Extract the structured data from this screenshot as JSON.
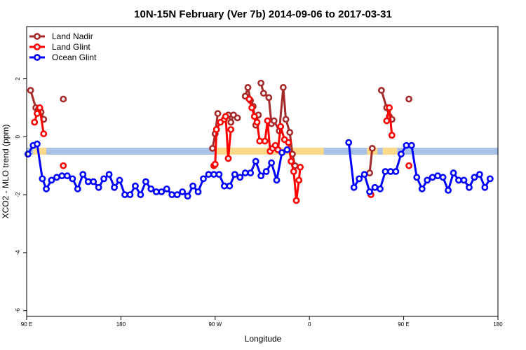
{
  "chart_data": {
    "type": "line",
    "title": "10N-15N February (Ver 7b)   2014-09-06 to 2017-03-31",
    "xlabel": "Longitude",
    "ylabel": "XCO2 - MLO trend (ppm)",
    "xlim": [
      -180,
      180
    ],
    "ylim": [
      -6.2,
      3.8
    ],
    "x_ticks": [
      {
        "value": -180,
        "label": "90 E"
      },
      {
        "value": -108,
        "label": "180"
      },
      {
        "value": -36,
        "label": "90 W"
      },
      {
        "value": 36,
        "label": "0"
      },
      {
        "value": 108,
        "label": "90 E"
      },
      {
        "value": 180,
        "label": "180"
      }
    ],
    "y_ticks": [
      {
        "value": 2,
        "label": "2"
      },
      {
        "value": 0,
        "label": "0"
      },
      {
        "value": -2,
        "label": "-2"
      },
      {
        "value": -4,
        "label": "-4"
      },
      {
        "value": -6,
        "label": "-6"
      }
    ],
    "legend": {
      "position": "top-left"
    },
    "band": {
      "y_from": -0.62,
      "y_to": -0.38,
      "color": "#a9c1e4",
      "land_color": "#fbd98a",
      "land_segments": [
        [
          -175,
          -165
        ],
        [
          -35,
          10
        ],
        [
          -5,
          47
        ],
        [
          80,
          88
        ],
        [
          92,
          103
        ]
      ]
    },
    "series": [
      {
        "name": "Land Nadir",
        "color": "#a52a2a",
        "segments": [
          [
            [
              -177,
              1.6
            ],
            [
              -173,
              1.0
            ],
            [
              -171,
              0.95
            ],
            [
              -169,
              0.85
            ],
            [
              -167,
              0.6
            ]
          ],
          [
            [
              -152,
              1.3
            ]
          ],
          [
            [
              -38,
              -0.4
            ],
            [
              -36,
              0.1
            ],
            [
              -34,
              0.8
            ]
          ],
          [
            [
              -26,
              0.75
            ],
            [
              -24,
              0.5
            ],
            [
              -22,
              0.75
            ],
            [
              -19,
              0.65
            ]
          ],
          [
            [
              -13,
              1.4
            ],
            [
              -11,
              1.7
            ],
            [
              -9,
              1.25
            ],
            [
              -7,
              1.05
            ],
            [
              -5,
              0.4
            ],
            [
              -3,
              0.75
            ]
          ],
          [
            [
              -1,
              1.85
            ],
            [
              1,
              1.5
            ],
            [
              5,
              1.35
            ],
            [
              7,
              0.45
            ],
            [
              9,
              0.55
            ],
            [
              13,
              0.2
            ],
            [
              16,
              1.7
            ],
            [
              18,
              0.6
            ],
            [
              21,
              0.15
            ],
            [
              23,
              -0.6
            ],
            [
              25,
              -1.0
            ]
          ],
          [
            [
              82,
              -1.25
            ],
            [
              84,
              -0.4
            ]
          ],
          [
            [
              91,
              1.6
            ],
            [
              95,
              1.0
            ],
            [
              97,
              0.7
            ],
            [
              99,
              0.6
            ]
          ],
          [
            [
              112,
              1.3
            ]
          ]
        ]
      },
      {
        "name": "Land Glint",
        "color": "#ff0000",
        "segments": [
          [
            [
              -174,
              0.5
            ],
            [
              -172,
              0.8
            ],
            [
              -170,
              1.0
            ],
            [
              -167,
              0.1
            ]
          ],
          [
            [
              -152,
              -1.0
            ]
          ],
          [
            [
              -37,
              -1.0
            ],
            [
              -36,
              -0.95
            ],
            [
              -35,
              0.25
            ],
            [
              -32,
              0.5
            ],
            [
              -29,
              0.6
            ],
            [
              -28,
              0.7
            ],
            [
              -26,
              -0.75
            ],
            [
              -24,
              0.25
            ]
          ],
          [
            [
              -10,
              1.3
            ],
            [
              -8,
              1.0
            ],
            [
              -6,
              0.7
            ],
            [
              -4,
              0.5
            ],
            [
              -2,
              -0.15
            ],
            [
              2,
              -0.15
            ],
            [
              4,
              0.55
            ],
            [
              6,
              -0.5
            ],
            [
              8,
              -0.4
            ],
            [
              10,
              -0.3
            ],
            [
              12,
              -0.45
            ],
            [
              14,
              0.35
            ],
            [
              17,
              -0.1
            ],
            [
              20,
              -0.2
            ],
            [
              22,
              -0.85
            ],
            [
              24,
              -1.2
            ],
            [
              26,
              -2.2
            ],
            [
              28,
              -1.5
            ],
            [
              29,
              -1.05
            ]
          ],
          [
            [
              83,
              -2.0
            ]
          ],
          [
            [
              95,
              0.55
            ],
            [
              97,
              1.0
            ],
            [
              99,
              0.05
            ]
          ],
          [
            [
              112,
              -1.0
            ]
          ]
        ]
      },
      {
        "name": "Ocean Glint",
        "color": "#0000ff",
        "segments": [
          [
            [
              -179,
              -0.6
            ],
            [
              -175,
              -0.3
            ],
            [
              -172,
              -0.25
            ],
            [
              -168,
              -1.45
            ],
            [
              -165,
              -1.8
            ],
            [
              -161,
              -1.5
            ],
            [
              -157,
              -1.4
            ],
            [
              -153,
              -1.35
            ],
            [
              -149,
              -1.35
            ],
            [
              -145,
              -1.45
            ],
            [
              -141,
              -1.8
            ],
            [
              -137,
              -1.3
            ],
            [
              -133,
              -1.55
            ],
            [
              -129,
              -1.55
            ],
            [
              -125,
              -1.75
            ],
            [
              -121,
              -1.45
            ],
            [
              -117,
              -1.3
            ],
            [
              -113,
              -1.75
            ],
            [
              -109,
              -1.5
            ],
            [
              -105,
              -2.0
            ],
            [
              -101,
              -2.0
            ],
            [
              -97,
              -1.7
            ],
            [
              -93,
              -2.0
            ],
            [
              -89,
              -1.55
            ],
            [
              -85,
              -1.8
            ],
            [
              -81,
              -1.9
            ],
            [
              -77,
              -1.9
            ],
            [
              -73,
              -1.8
            ],
            [
              -69,
              -2.0
            ],
            [
              -65,
              -2.0
            ],
            [
              -61,
              -1.9
            ],
            [
              -57,
              -2.05
            ],
            [
              -53,
              -1.7
            ],
            [
              -49,
              -1.9
            ],
            [
              -45,
              -1.45
            ],
            [
              -41,
              -1.3
            ],
            [
              -37,
              -1.3
            ],
            [
              -33,
              -1.3
            ],
            [
              -29,
              -1.7
            ],
            [
              -25,
              -1.7
            ],
            [
              -21,
              -1.3
            ],
            [
              -17,
              -1.4
            ],
            [
              -13,
              -1.25
            ],
            [
              -9,
              -1.25
            ],
            [
              -5,
              -0.85
            ],
            [
              -1,
              -1.35
            ],
            [
              3,
              -1.2
            ],
            [
              7,
              -0.9
            ],
            [
              11,
              -1.5
            ],
            [
              15,
              -0.55
            ],
            [
              19,
              -0.45
            ]
          ],
          [
            [
              66,
              -0.2
            ],
            [
              70,
              -1.75
            ],
            [
              74,
              -1.45
            ],
            [
              78,
              -1.3
            ],
            [
              82,
              -1.9
            ],
            [
              86,
              -1.75
            ],
            [
              90,
              -1.8
            ],
            [
              94,
              -1.2
            ],
            [
              98,
              -1.2
            ],
            [
              102,
              -1.2
            ],
            [
              106,
              -0.6
            ],
            [
              110,
              -0.3
            ],
            [
              114,
              -0.3
            ],
            [
              118,
              -1.4
            ],
            [
              122,
              -1.8
            ],
            [
              126,
              -1.5
            ],
            [
              130,
              -1.4
            ],
            [
              134,
              -1.35
            ],
            [
              138,
              -1.4
            ],
            [
              142,
              -1.85
            ],
            [
              146,
              -1.25
            ],
            [
              150,
              -1.5
            ],
            [
              154,
              -1.5
            ],
            [
              158,
              -1.75
            ],
            [
              162,
              -1.4
            ],
            [
              166,
              -1.3
            ],
            [
              170,
              -1.75
            ],
            [
              174,
              -1.45
            ]
          ]
        ]
      }
    ]
  }
}
